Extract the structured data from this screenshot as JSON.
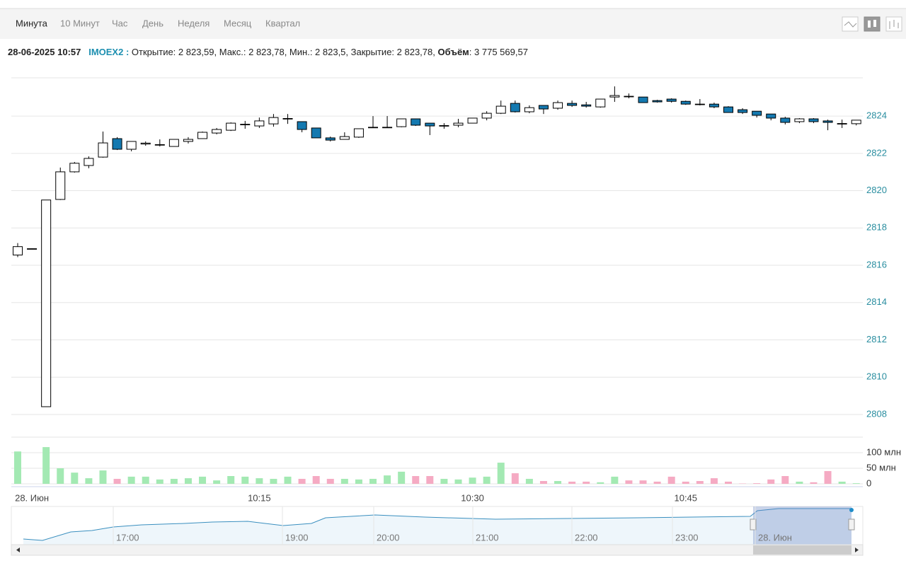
{
  "tabs": {
    "items": [
      "Минута",
      "10 Минут",
      "Час",
      "День",
      "Неделя",
      "Месяц",
      "Квартал"
    ],
    "active": 0
  },
  "info": {
    "datetime": "28-06-2025 10:57",
    "ticker": "IMOEX2 :",
    "prices": "Открытие: 2 823,59, Макс.: 2 823,78, Мин.: 2 823,5, Закрытие: 2 823,78,",
    "volume_label": "Объём",
    "volume_value": ": 3 775 569,57"
  },
  "chart_data": {
    "type": "candlestick",
    "categories": [
      null,
      "28. Июн",
      null,
      null,
      null,
      null,
      null,
      null,
      null,
      null,
      null,
      null,
      null,
      null,
      null,
      null,
      null,
      "10:15",
      null,
      null,
      null,
      null,
      null,
      null,
      null,
      null,
      null,
      null,
      null,
      null,
      null,
      null,
      "10:30",
      null,
      null,
      null,
      null,
      null,
      null,
      null,
      null,
      null,
      null,
      null,
      null,
      null,
      null,
      "10:45",
      null,
      null,
      null,
      null,
      null,
      null,
      null,
      null,
      null,
      null,
      null,
      null
    ],
    "open": [
      2816.55,
      2816.89,
      2808.42,
      2819.53,
      2821.01,
      2821.35,
      2821.8,
      2822.79,
      2822.22,
      2822.5,
      2822.45,
      2822.37,
      2822.64,
      2822.79,
      2823.09,
      2823.24,
      2823.53,
      2823.47,
      2823.58,
      2823.85,
      2823.7,
      2823.36,
      2822.83,
      2822.75,
      2822.87,
      2823.38,
      2823.4,
      2823.43,
      2823.85,
      2823.62,
      2823.47,
      2823.51,
      2823.62,
      2823.89,
      2824.15,
      2824.68,
      2824.23,
      2824.57,
      2824.42,
      2824.68,
      2824.6,
      2824.49,
      2825.02,
      2825.06,
      2825.02,
      2824.83,
      2824.91,
      2824.79,
      2824.64,
      2824.64,
      2824.49,
      2824.34,
      2824.26,
      2824.11,
      2823.89,
      2823.7,
      2823.85,
      2823.74,
      2823.58,
      2823.59
    ],
    "high": [
      2817.19,
      2816.9,
      2819.5,
      2821.24,
      2821.54,
      2821.84,
      2823.17,
      2822.87,
      2822.64,
      2822.64,
      2822.75,
      2822.75,
      2822.87,
      2823.17,
      2823.36,
      2823.66,
      2823.74,
      2823.92,
      2824.11,
      2824.11,
      2823.7,
      2823.36,
      2822.9,
      2823.13,
      2823.32,
      2824.0,
      2824.0,
      2823.85,
      2823.85,
      2823.62,
      2823.62,
      2823.85,
      2823.89,
      2824.26,
      2824.83,
      2824.83,
      2824.57,
      2824.57,
      2824.83,
      2824.83,
      2824.76,
      2824.91,
      2825.59,
      2825.21,
      2825.02,
      2824.87,
      2824.95,
      2824.83,
      2824.91,
      2824.72,
      2824.53,
      2824.42,
      2824.26,
      2824.11,
      2823.96,
      2823.89,
      2823.89,
      2823.81,
      2823.81,
      2823.78
    ],
    "low": [
      2816.44,
      2816.88,
      2808.42,
      2819.5,
      2820.97,
      2821.2,
      2821.77,
      2822.18,
      2822.11,
      2822.41,
      2822.37,
      2822.37,
      2822.53,
      2822.79,
      2823.02,
      2823.2,
      2823.32,
      2823.36,
      2823.43,
      2823.58,
      2823.13,
      2822.83,
      2822.64,
      2822.75,
      2822.83,
      2823.38,
      2823.4,
      2823.4,
      2823.47,
      2822.98,
      2823.32,
      2823.4,
      2823.62,
      2823.77,
      2824.11,
      2824.19,
      2824.15,
      2824.11,
      2824.34,
      2824.49,
      2824.45,
      2824.45,
      2824.76,
      2824.95,
      2824.72,
      2824.72,
      2824.72,
      2824.6,
      2824.57,
      2824.42,
      2824.19,
      2824.11,
      2823.92,
      2823.77,
      2823.55,
      2823.62,
      2823.62,
      2823.24,
      2823.36,
      2823.5
    ],
    "close": [
      2817.0,
      2816.89,
      2819.5,
      2821.01,
      2821.47,
      2821.73,
      2822.56,
      2822.22,
      2822.64,
      2822.55,
      2822.47,
      2822.75,
      2822.75,
      2823.13,
      2823.28,
      2823.62,
      2823.56,
      2823.74,
      2823.92,
      2823.87,
      2823.28,
      2822.83,
      2822.71,
      2822.9,
      2823.32,
      2823.4,
      2823.4,
      2823.85,
      2823.51,
      2823.47,
      2823.49,
      2823.62,
      2823.89,
      2824.15,
      2824.53,
      2824.23,
      2824.45,
      2824.38,
      2824.72,
      2824.57,
      2824.53,
      2824.91,
      2825.1,
      2825.04,
      2824.72,
      2824.76,
      2824.79,
      2824.64,
      2824.62,
      2824.49,
      2824.19,
      2824.19,
      2824.04,
      2823.89,
      2823.66,
      2823.85,
      2823.7,
      2823.66,
      2823.6,
      2823.78
    ],
    "up_color": "#ffffff",
    "down_color": "#1479b0",
    "ylim": [
      2807.85,
      2826.05
    ],
    "yticks": [
      2808,
      2810,
      2812,
      2814,
      2816,
      2818,
      2820,
      2822,
      2824
    ],
    "grid": true,
    "volume": {
      "values": [
        104,
        0,
        118,
        50,
        36,
        18,
        43,
        16,
        23,
        23,
        14,
        16,
        18,
        23,
        11,
        25,
        23,
        18,
        16,
        23,
        16,
        25,
        16,
        16,
        14,
        16,
        27,
        39,
        25,
        25,
        16,
        14,
        20,
        23,
        68,
        34,
        16,
        9,
        9,
        7,
        7,
        5,
        23,
        11,
        11,
        7,
        23,
        7,
        9,
        18,
        7,
        1,
        2,
        14,
        25,
        7,
        5,
        41,
        7,
        2
      ],
      "up_color": "#a3e9b3",
      "down_color": "#f5aac3",
      "ylim": [
        0,
        150
      ],
      "yticks": [
        0,
        {
          "value": 50,
          "label": "50 млн"
        },
        {
          "value": 100,
          "label": "100 млн"
        }
      ]
    }
  },
  "navigator": {
    "labels": [
      "17:00",
      "19:00",
      "20:00",
      "21:00",
      "22:00",
      "23:00",
      "28. Июн"
    ]
  }
}
